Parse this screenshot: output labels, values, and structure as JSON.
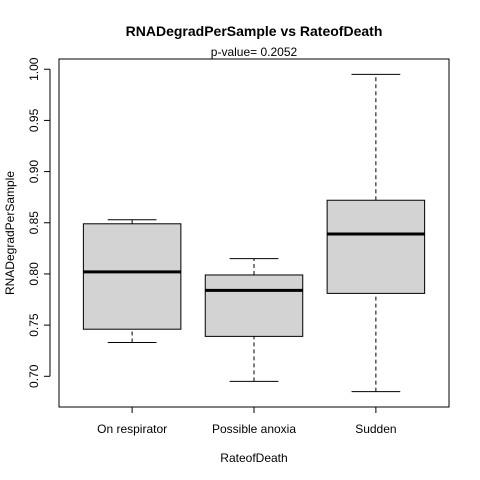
{
  "chart_data": {
    "type": "box",
    "title": "RNADegradPerSample  vs  RateofDeath",
    "subtitle": "p-value= 0.2052",
    "xlabel": "RateofDeath",
    "ylabel": "RNADegradPerSample",
    "ylim": [
      0.67,
      1.01
    ],
    "yticks": [
      0.7,
      0.75,
      0.8,
      0.85,
      0.9,
      0.95,
      1.0
    ],
    "ytick_labels": [
      "0.70",
      "0.75",
      "0.80",
      "0.85",
      "0.90",
      "0.95",
      "1.00"
    ],
    "categories": [
      "On respirator",
      "Possible anoxia",
      "Sudden"
    ],
    "box_fill": "#d3d3d3",
    "boxes": [
      {
        "category": "On respirator",
        "min": 0.733,
        "q1": 0.746,
        "median": 0.802,
        "q3": 0.849,
        "max": 0.853
      },
      {
        "category": "Possible anoxia",
        "min": 0.695,
        "q1": 0.739,
        "median": 0.784,
        "q3": 0.799,
        "max": 0.815
      },
      {
        "category": "Sudden",
        "min": 0.685,
        "q1": 0.781,
        "median": 0.839,
        "q3": 0.872,
        "max": 0.995
      }
    ]
  }
}
